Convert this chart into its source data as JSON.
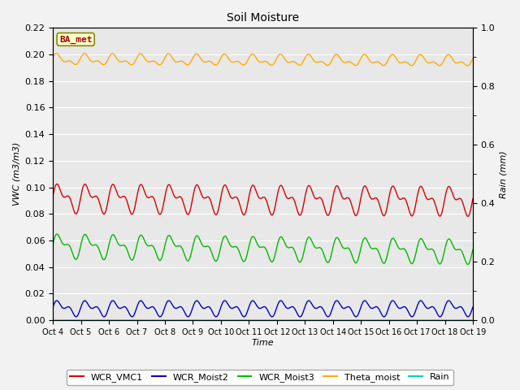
{
  "title": "Soil Moisture",
  "xlabel": "Time",
  "ylabel_left": "VWC (m3/m3)",
  "ylabel_right": "Rain (mm)",
  "ylim_left": [
    0.0,
    0.22
  ],
  "ylim_right": [
    0.0,
    1.0
  ],
  "xtick_labels": [
    "Oct 4",
    "Oct 5",
    "Oct 6",
    "Oct 7",
    "Oct 8",
    "Oct 9",
    "Oct 10",
    "Oct 11",
    "Oct 12",
    "Oct 13",
    "Oct 14",
    "Oct 15",
    "Oct 16",
    "Oct 17",
    "Oct 18",
    "Oct 19"
  ],
  "annotation_text": "BA_met",
  "annotation_color": "#aa0000",
  "annotation_bg": "#ffffcc",
  "annotation_border": "#888800",
  "colors": {
    "WCR_VMC1": "#dd0000",
    "WCR_Moist2": "#0000cc",
    "WCR_Moist3": "#00bb00",
    "Theta_moist": "#ffaa00",
    "Rain": "#00cccc"
  },
  "plot_bg": "#e8e8e8",
  "fig_bg": "#f2f2f2",
  "grid_color": "#ffffff",
  "n_points": 1500
}
